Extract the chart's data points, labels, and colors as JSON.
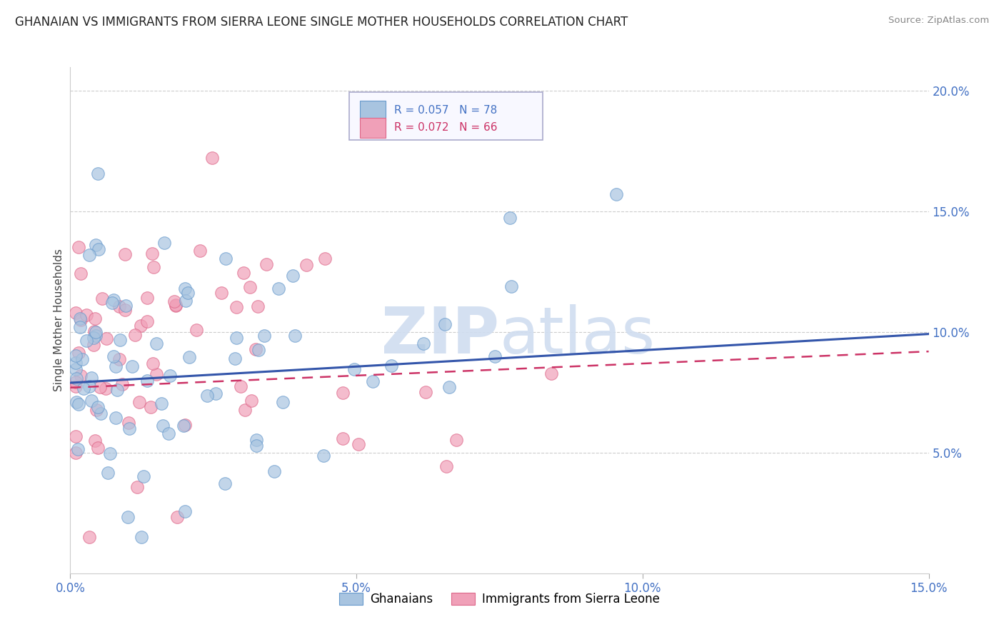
{
  "title": "GHANAIAN VS IMMIGRANTS FROM SIERRA LEONE SINGLE MOTHER HOUSEHOLDS CORRELATION CHART",
  "source": "Source: ZipAtlas.com",
  "ylabel": "Single Mother Households",
  "xlim": [
    0.0,
    0.15
  ],
  "ylim": [
    0.0,
    0.21
  ],
  "xticks": [
    0.0,
    0.05,
    0.1,
    0.15
  ],
  "xtick_labels": [
    "0.0%",
    "5.0%",
    "10.0%",
    "15.0%"
  ],
  "yticks": [
    0.05,
    0.1,
    0.15,
    0.2
  ],
  "ytick_labels": [
    "5.0%",
    "10.0%",
    "15.0%",
    "20.0%"
  ],
  "series1_label": "Ghanaians",
  "series1_color": "#a8c4e0",
  "series1_edge": "#6699cc",
  "series1_R": 0.057,
  "series1_N": 78,
  "series2_label": "Immigrants from Sierra Leone",
  "series2_color": "#f0a0b8",
  "series2_edge": "#dd6688",
  "series2_R": 0.072,
  "series2_N": 66,
  "trend1_color": "#3355aa",
  "trend2_color": "#cc3366",
  "background_color": "#ffffff",
  "grid_color": "#cccccc",
  "title_fontsize": 12,
  "axis_color": "#4472c4",
  "watermark_color": "#d0ddf0",
  "legend_box_color": "#f8f8ff",
  "legend_border_color": "#aaaacc"
}
